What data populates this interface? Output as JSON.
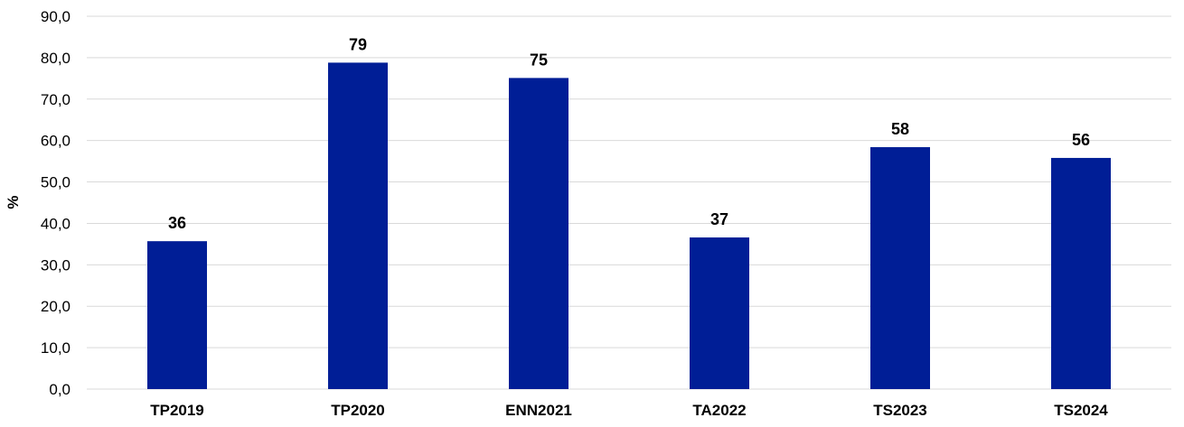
{
  "chart_data": {
    "type": "bar",
    "categories": [
      "TP2019",
      "TP2020",
      "ENN2021",
      "TA2022",
      "TS2023",
      "TS2024"
    ],
    "values": [
      35.7,
      78.8,
      75.1,
      36.6,
      58.4,
      55.8
    ],
    "data_labels": [
      "36",
      "79",
      "75",
      "37",
      "58",
      "56"
    ],
    "ylabel": "%",
    "ylim": [
      0,
      90
    ],
    "y_ticks": [
      "0,0",
      "10,0",
      "20,0",
      "30,0",
      "40,0",
      "50,0",
      "60,0",
      "70,0",
      "80,0",
      "90,0"
    ],
    "grid": true,
    "legend": "none",
    "bar_color": "#001e96"
  }
}
